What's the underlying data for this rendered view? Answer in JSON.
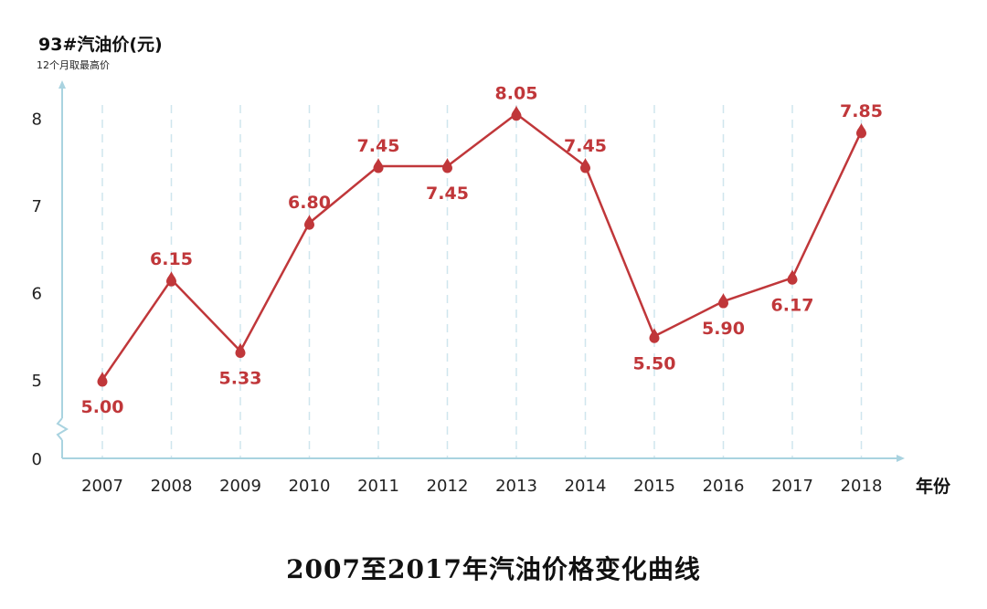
{
  "chart_data": {
    "type": "line",
    "title": "2007至2017年汽油价格变化曲线",
    "ylabel": "93#汽油价(元)",
    "ysublabel": "12个月取最高价",
    "xlabel": "年份",
    "categories": [
      "2007",
      "2008",
      "2009",
      "2010",
      "2011",
      "2012",
      "2013",
      "2014",
      "2015",
      "2016",
      "2017",
      "2018"
    ],
    "values": [
      5.0,
      6.15,
      5.33,
      6.8,
      7.45,
      7.45,
      8.05,
      7.45,
      5.5,
      5.9,
      6.17,
      7.85
    ],
    "value_labels": [
      "5.00",
      "6.15",
      "5.33",
      "6.80",
      "7.45",
      "7.45",
      "8.05",
      "7.45",
      "5.50",
      "5.90",
      "6.17",
      "7.85"
    ],
    "y_ticks": [
      "0",
      "5",
      "6",
      "7",
      "8"
    ],
    "ylim": [
      0,
      8.3
    ],
    "y_axis_break": true,
    "grid": "vertical dashed",
    "line_color": "#c0373a",
    "axis_color": "#a9d3e0",
    "grid_color": "#cfe6ee",
    "marker": "drop"
  }
}
